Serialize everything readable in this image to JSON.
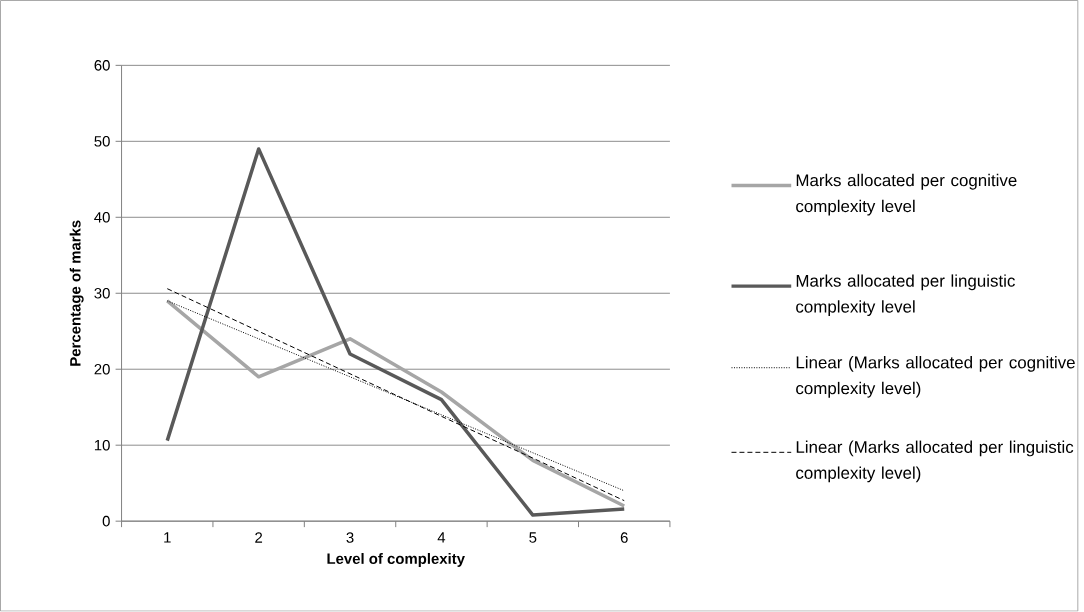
{
  "chart_data": {
    "type": "line",
    "xlabel": "Level of complexity",
    "ylabel": "Percentage of marks",
    "categories": [
      "1",
      "2",
      "3",
      "4",
      "5",
      "6"
    ],
    "series": [
      {
        "name": "Marks allocated per cognitive complexity level",
        "color": "#a6a6a6",
        "line_style": "solid",
        "values": [
          29,
          19,
          24,
          17,
          8,
          2
        ]
      },
      {
        "name": "Marks allocated per linguistic complexity level",
        "color": "#595959",
        "line_style": "solid",
        "values": [
          10.6,
          49,
          22,
          16,
          0.8,
          1.6
        ]
      },
      {
        "name": "Linear (Marks allocated per cognitive complexity level)",
        "color": "#000000",
        "line_style": "dotted",
        "values": [
          29,
          24,
          19,
          14,
          9,
          4
        ]
      },
      {
        "name": "Linear (Marks allocated per linguistic complexity level)",
        "color": "#000000",
        "line_style": "dashed",
        "values": [
          30.6,
          25.0,
          19.4,
          13.8,
          8.3,
          2.7
        ]
      }
    ],
    "ylim": [
      0,
      60
    ],
    "yticks": [
      0,
      10,
      20,
      30,
      40,
      50,
      60
    ],
    "grid": "y",
    "legend": "right"
  }
}
